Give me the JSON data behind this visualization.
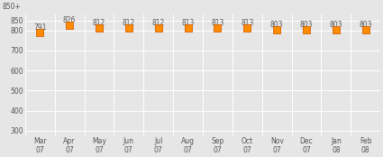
{
  "categories": [
    "Mar\n07",
    "Apr\n07",
    "May\n07",
    "Jun\n07",
    "Jul\n07",
    "Aug\n07",
    "Sep\n07",
    "Oct\n07",
    "Nov\n07",
    "Dec\n07",
    "Jan\n08",
    "Feb\n08"
  ],
  "values": [
    791,
    826,
    812,
    812,
    812,
    813,
    813,
    813,
    803,
    803,
    803,
    803
  ],
  "yticks": [
    300,
    400,
    500,
    600,
    700,
    800,
    850
  ],
  "ylim": [
    275,
    880
  ],
  "ymax_label": "850+",
  "marker_color": "#FF8C00",
  "marker_edge_color": "#D45F00",
  "plot_bg_color": "#E6E6E6",
  "fig_bg_color": "#E6E6E6",
  "grid_color": "#FFFFFF",
  "text_color": "#555555",
  "label_fontsize": 5.5,
  "tick_fontsize": 5.5,
  "marker_size": 28
}
